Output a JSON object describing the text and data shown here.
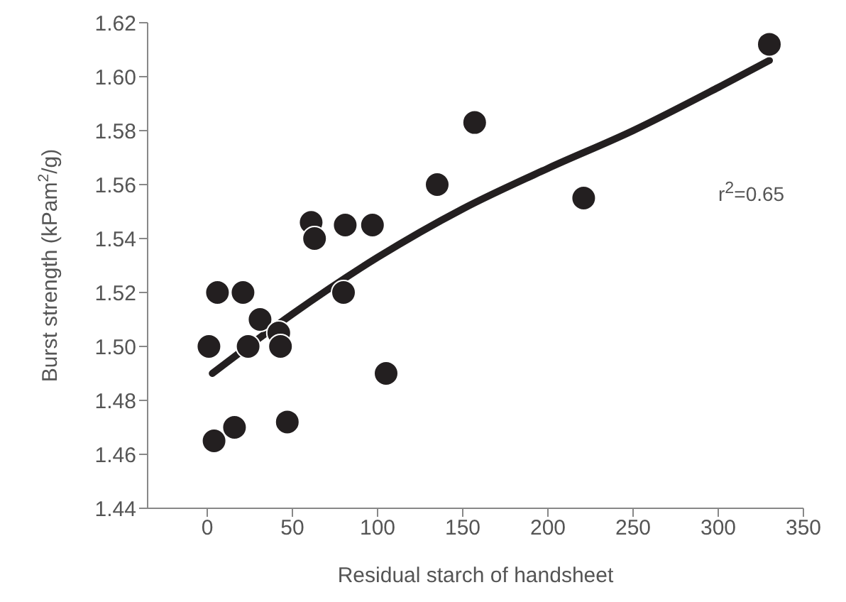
{
  "chart_data": {
    "type": "scatter",
    "xlabel": "Residual starch of handsheet",
    "ylabel": "Burst strength (kPam$^{2}$/g)",
    "annotations": [
      "r$^{2}$=0.65"
    ],
    "xlim": [
      -35,
      350
    ],
    "xticks": [
      0,
      50,
      100,
      150,
      200,
      250,
      300,
      350
    ],
    "ylim": [
      1.44,
      1.62
    ],
    "yticks": [
      1.44,
      1.46,
      1.48,
      {
        "value": 1.5,
        "label": "1.50"
      },
      1.52,
      1.54,
      1.56,
      1.58,
      {
        "value": 1.6,
        "label": "1.60"
      },
      1.62
    ],
    "grid": false,
    "legend": false,
    "series": [
      {
        "color": "#231f20",
        "marker": "circle",
        "x": [
          6,
          21,
          31,
          42,
          1,
          24,
          43,
          4,
          16,
          47,
          61,
          63,
          81,
          97,
          80,
          105,
          135,
          157,
          221,
          330
        ],
        "values": [
          1.52,
          1.52,
          1.51,
          1.505,
          1.5,
          1.5,
          1.5,
          1.465,
          1.47,
          1.472,
          1.546,
          1.54,
          1.545,
          1.545,
          1.52,
          1.49,
          1.56,
          1.583,
          1.555,
          1.612
        ]
      },
      {
        "type": "line",
        "marker": "none",
        "color": "#231f20",
        "x": [
          3,
          50,
          100,
          150,
          200,
          250,
          300,
          330
        ],
        "values": [
          1.49,
          1.512,
          1.533,
          1.551,
          1.566,
          1.58,
          1.596,
          1.606
        ]
      }
    ]
  }
}
